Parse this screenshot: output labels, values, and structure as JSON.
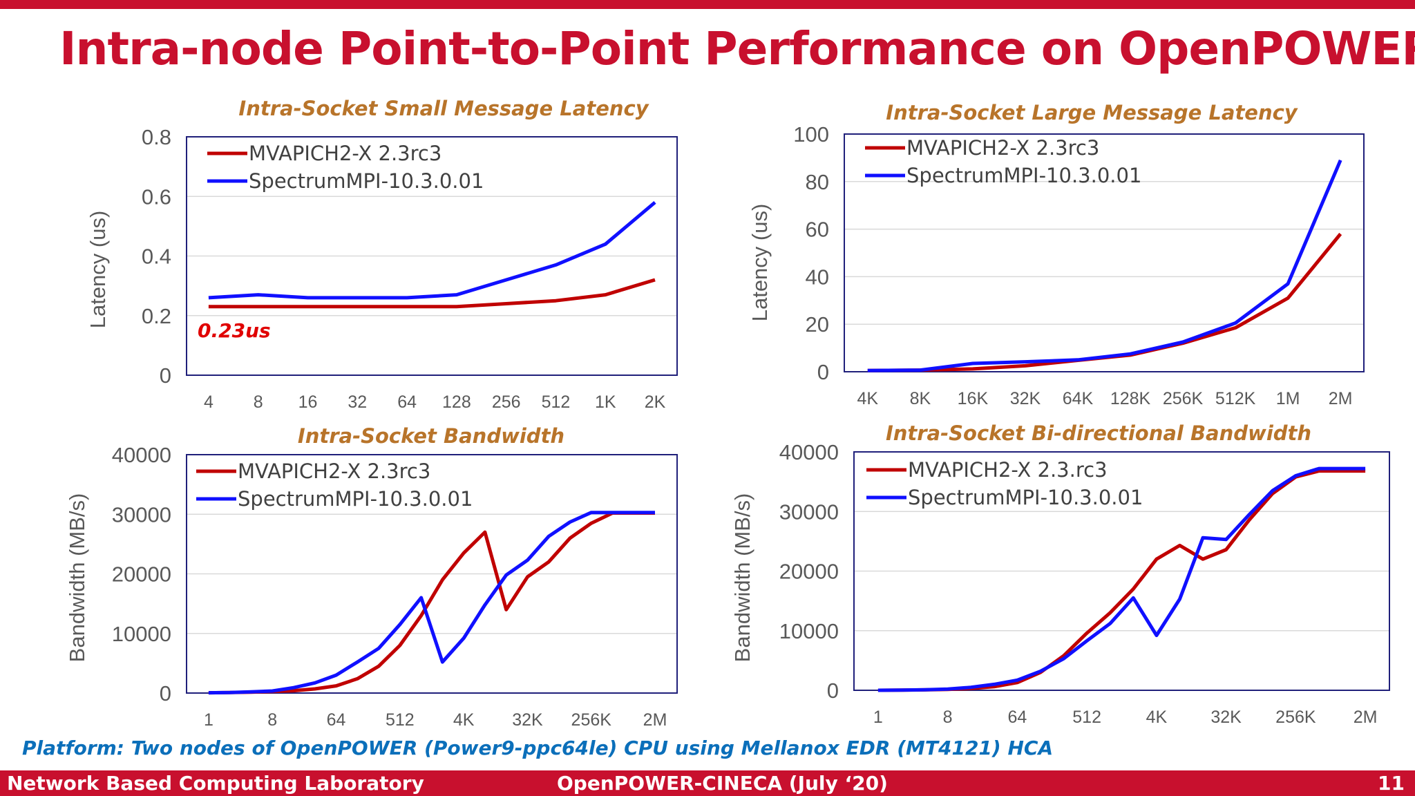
{
  "slide": {
    "title": "Intra-node Point-to-Point Performance on OpenPOWER",
    "platform_note": "Platform: Two nodes of OpenPOWER (Power9-ppc64le) CPU using Mellanox EDR (MT4121) HCA",
    "footer_left": "Network Based Computing Laboratory",
    "footer_center": "OpenPOWER-CINECA (July ‘20)",
    "footer_page": "11"
  },
  "colors": {
    "brand_red": "#c8102e",
    "title_gold": "#b8742a",
    "note_blue": "#0b6fba",
    "mvapich": "#c00000",
    "spectrum": "#1010ff",
    "annotation": "#e00000"
  },
  "chart_data": [
    {
      "type": "line",
      "title": "Intra-Socket Small Message Latency",
      "ylabel": "Latency (us)",
      "xlabel": "",
      "categories": [
        "4",
        "8",
        "16",
        "32",
        "64",
        "128",
        "256",
        "512",
        "1K",
        "2K"
      ],
      "yticks": [
        "0",
        "0.2",
        "0.4",
        "0.6",
        "0.8"
      ],
      "ylim": [
        0,
        0.8
      ],
      "grid": true,
      "legend_position": "top-left",
      "series": [
        {
          "name": "MVAPICH2-X 2.3rc3",
          "color": "#c00000",
          "values": [
            0.23,
            0.23,
            0.23,
            0.23,
            0.23,
            0.23,
            0.24,
            0.25,
            0.27,
            0.32
          ]
        },
        {
          "name": "SpectrumMPI-10.3.0.01",
          "color": "#1010ff",
          "values": [
            0.26,
            0.27,
            0.26,
            0.26,
            0.26,
            0.27,
            0.32,
            0.37,
            0.44,
            0.58
          ]
        }
      ],
      "annotation": "0.23us"
    },
    {
      "type": "line",
      "title": "Intra-Socket Large Message Latency",
      "ylabel": "Latency (us)",
      "xlabel": "",
      "categories": [
        "4K",
        "8K",
        "16K",
        "32K",
        "64K",
        "128K",
        "256K",
        "512K",
        "1M",
        "2M"
      ],
      "yticks": [
        "0",
        "20",
        "40",
        "60",
        "80",
        "100"
      ],
      "ylim": [
        0,
        100
      ],
      "grid": true,
      "legend_position": "top-left",
      "series": [
        {
          "name": "MVAPICH2-X 2.3rc3",
          "color": "#c00000",
          "values": [
            0.5,
            0.7,
            1.2,
            2.5,
            4.8,
            7.0,
            12.0,
            18.5,
            31.0,
            58.0
          ]
        },
        {
          "name": "SpectrumMPI-10.3.0.01",
          "color": "#1010ff",
          "values": [
            0.5,
            0.7,
            3.5,
            4.2,
            5.0,
            7.5,
            12.5,
            20.5,
            37.0,
            89.0
          ]
        }
      ]
    },
    {
      "type": "line",
      "title": "Intra-Socket Bandwidth",
      "ylabel": "Bandwidth (MB/s)",
      "xlabel": "",
      "categories": [
        "1",
        "2",
        "4",
        "8",
        "16",
        "32",
        "64",
        "128",
        "256",
        "512",
        "1K",
        "2K",
        "4K",
        "8K",
        "16K",
        "32K",
        "64K",
        "128K",
        "256K",
        "512K",
        "1M",
        "2M"
      ],
      "x_tick_labels": [
        "1",
        "8",
        "64",
        "512",
        "4K",
        "32K",
        "256K",
        "2M"
      ],
      "yticks": [
        "0",
        "10000",
        "20000",
        "30000",
        "40000"
      ],
      "ylim": [
        0,
        40000
      ],
      "grid": true,
      "legend_position": "top-left",
      "series": [
        {
          "name": "MVAPICH2-X 2.3rc3",
          "color": "#c00000",
          "values": [
            50,
            80,
            150,
            250,
            400,
            700,
            1200,
            2400,
            4500,
            8000,
            13000,
            19000,
            23500,
            27000,
            14000,
            19500,
            22000,
            26000,
            28500,
            30200,
            30200,
            30200
          ]
        },
        {
          "name": "SpectrumMPI-10.3.0.01",
          "color": "#1010ff",
          "values": [
            50,
            80,
            200,
            350,
            900,
            1700,
            3000,
            5200,
            7500,
            11500,
            16000,
            5200,
            9200,
            14800,
            19800,
            22300,
            26300,
            28700,
            30300,
            30300,
            30300,
            30300
          ]
        }
      ]
    },
    {
      "type": "line",
      "title": "Intra-Socket Bi-directional Bandwidth",
      "ylabel": "Bandwidth (MB/s)",
      "xlabel": "",
      "categories": [
        "1",
        "2",
        "4",
        "8",
        "16",
        "32",
        "64",
        "128",
        "256",
        "512",
        "1K",
        "2K",
        "4K",
        "8K",
        "16K",
        "32K",
        "64K",
        "128K",
        "256K",
        "512K",
        "1M",
        "2M"
      ],
      "x_tick_labels": [
        "1",
        "8",
        "64",
        "512",
        "4K",
        "32K",
        "256K",
        "2M"
      ],
      "yticks": [
        "0",
        "10000",
        "20000",
        "30000",
        "40000"
      ],
      "ylim": [
        0,
        40000
      ],
      "grid": true,
      "legend_position": "top-left",
      "series": [
        {
          "name": "MVAPICH2-X 2.3.rc3",
          "color": "#c00000",
          "values": [
            0,
            30,
            70,
            150,
            300,
            600,
            1300,
            3000,
            5800,
            9600,
            13000,
            17000,
            22000,
            24300,
            22000,
            23600,
            28600,
            33000,
            35800,
            36800,
            36800,
            36800
          ]
        },
        {
          "name": "SpectrumMPI-10.3.0.01",
          "color": "#1010ff",
          "values": [
            0,
            30,
            80,
            200,
            500,
            1000,
            1700,
            3200,
            5300,
            8300,
            11200,
            15500,
            9200,
            15300,
            25600,
            25300,
            29500,
            33500,
            36000,
            37200,
            37200,
            37200
          ]
        }
      ]
    }
  ]
}
